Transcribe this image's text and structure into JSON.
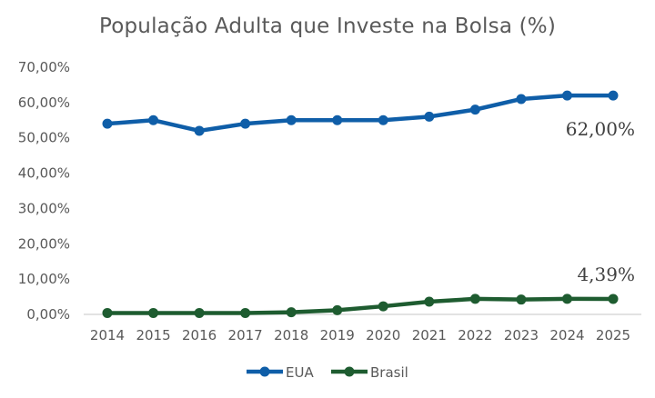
{
  "chart_data": {
    "type": "line",
    "title": "População Adulta que Investe na Bolsa (%)",
    "xlabel": "",
    "ylabel": "",
    "x": [
      "2014",
      "2015",
      "2016",
      "2017",
      "2018",
      "2019",
      "2020",
      "2021",
      "2022",
      "2023",
      "2024",
      "2025"
    ],
    "ylim": [
      0,
      70
    ],
    "yticks": [
      0,
      10,
      20,
      30,
      40,
      50,
      60,
      70
    ],
    "ytick_labels": [
      "0,00%",
      "10,00%",
      "20,00%",
      "30,00%",
      "40,00%",
      "50,00%",
      "60,00%",
      "70,00%"
    ],
    "grid": false,
    "legend": "bottom",
    "series": [
      {
        "name": "EUA",
        "color": "#0f5ea8",
        "values": [
          54,
          55,
          52,
          54,
          55,
          55,
          55,
          56,
          58,
          61,
          62,
          62
        ],
        "end_label": "62,00%"
      },
      {
        "name": "Brasil",
        "color": "#1e5c30",
        "values": [
          0.4,
          0.4,
          0.4,
          0.4,
          0.6,
          1.2,
          2.3,
          3.6,
          4.4,
          4.2,
          4.4,
          4.39
        ],
        "end_label": "4,39%"
      }
    ]
  }
}
